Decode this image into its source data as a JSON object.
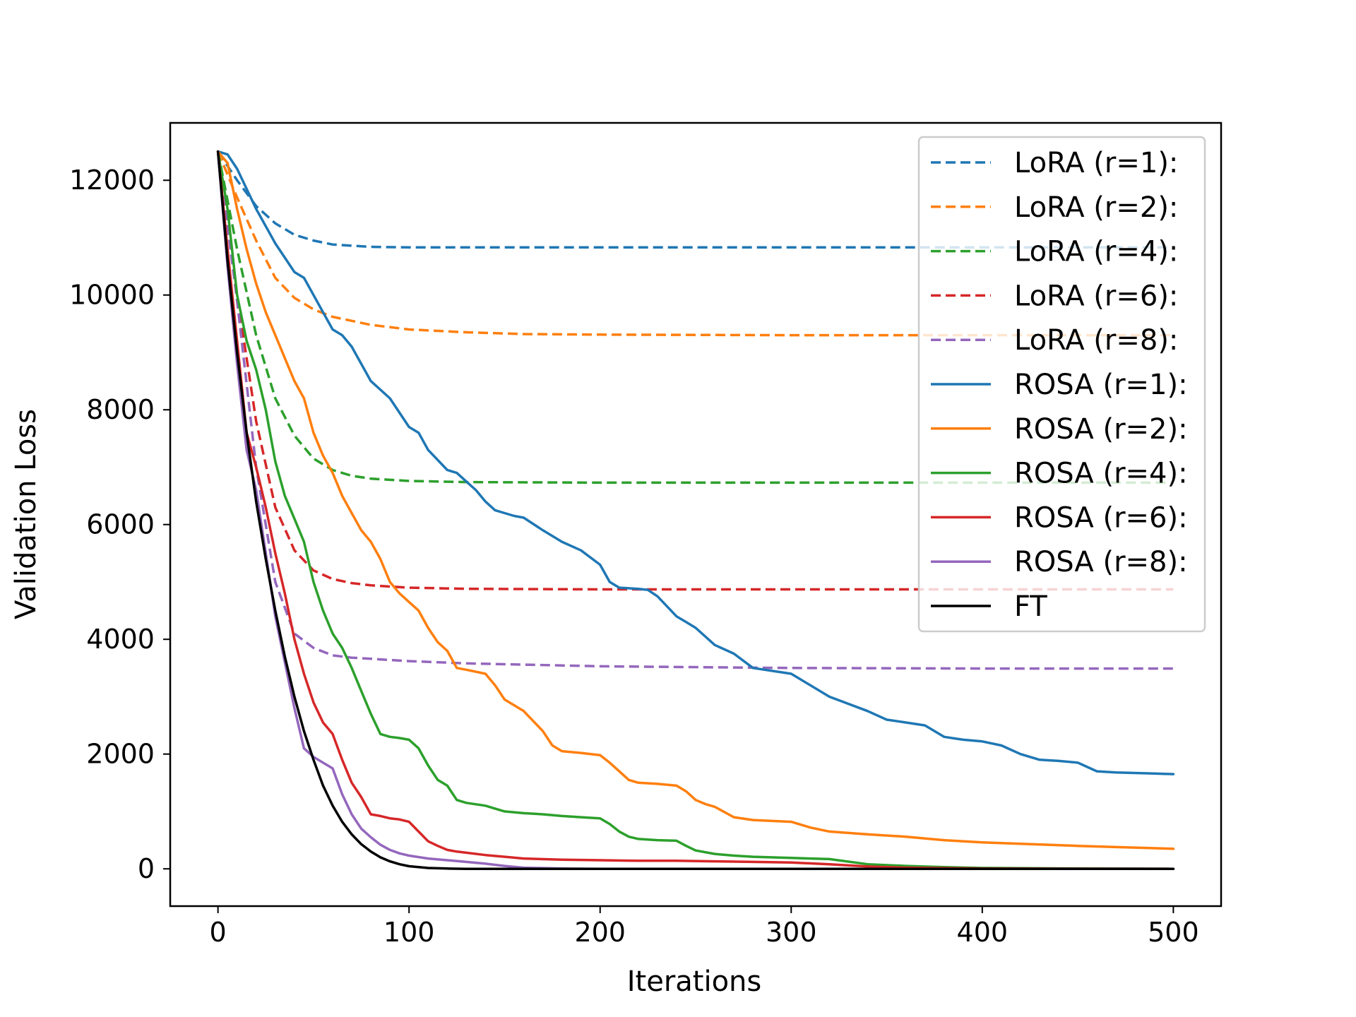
{
  "chart_data": {
    "type": "line",
    "title": "",
    "xlabel": "Iterations",
    "ylabel": "Validation Loss",
    "xlim": [
      -25,
      525
    ],
    "ylim": [
      -650,
      13000
    ],
    "xticks": [
      0,
      100,
      200,
      300,
      400,
      500
    ],
    "yticks": [
      0,
      2000,
      4000,
      6000,
      8000,
      10000,
      12000
    ],
    "grid": false,
    "legend_position": "top-right",
    "series": [
      {
        "name": "LoRA (r=1):",
        "color": "#1f77b4",
        "style": "dashed",
        "x": [
          0,
          10,
          20,
          30,
          40,
          50,
          60,
          80,
          100,
          150,
          200,
          300,
          400,
          500
        ],
        "y": [
          12500,
          12000,
          11550,
          11250,
          11050,
          10950,
          10880,
          10840,
          10830,
          10830,
          10830,
          10830,
          10830,
          10830
        ]
      },
      {
        "name": "LoRA (r=2):",
        "color": "#ff7f0e",
        "style": "dashed",
        "x": [
          0,
          10,
          20,
          30,
          40,
          50,
          60,
          80,
          100,
          130,
          160,
          200,
          300,
          400,
          500
        ],
        "y": [
          12500,
          11700,
          10950,
          10300,
          9950,
          9750,
          9620,
          9480,
          9400,
          9350,
          9320,
          9310,
          9300,
          9300,
          9300
        ]
      },
      {
        "name": "LoRA (r=4):",
        "color": "#2ca02c",
        "style": "dashed",
        "x": [
          0,
          10,
          20,
          30,
          40,
          50,
          60,
          70,
          80,
          100,
          130,
          200,
          300,
          400,
          500
        ],
        "y": [
          12500,
          10800,
          9300,
          8200,
          7550,
          7150,
          6950,
          6850,
          6800,
          6760,
          6740,
          6730,
          6730,
          6730,
          6730
        ]
      },
      {
        "name": "LoRA (r=6):",
        "color": "#d62728",
        "style": "dashed",
        "x": [
          0,
          10,
          20,
          30,
          40,
          50,
          60,
          70,
          80,
          100,
          130,
          200,
          300,
          400,
          500
        ],
        "y": [
          12500,
          10000,
          7800,
          6300,
          5550,
          5200,
          5050,
          4980,
          4940,
          4900,
          4880,
          4870,
          4870,
          4870,
          4870
        ]
      },
      {
        "name": "LoRA (r=8):",
        "color": "#9467bd",
        "style": "dashed",
        "x": [
          0,
          10,
          20,
          30,
          40,
          50,
          60,
          70,
          80,
          100,
          130,
          200,
          300,
          400,
          500
        ],
        "y": [
          12500,
          9900,
          7000,
          5000,
          4100,
          3850,
          3720,
          3680,
          3660,
          3620,
          3580,
          3530,
          3500,
          3490,
          3490
        ]
      },
      {
        "name": "ROSA (r=1):",
        "color": "#1f77b4",
        "style": "solid",
        "x": [
          0,
          5,
          10,
          20,
          30,
          40,
          45,
          50,
          55,
          60,
          65,
          70,
          80,
          90,
          100,
          105,
          110,
          120,
          125,
          130,
          135,
          140,
          145,
          150,
          155,
          160,
          170,
          180,
          190,
          200,
          205,
          210,
          220,
          225,
          230,
          240,
          245,
          250,
          260,
          270,
          280,
          300,
          320,
          340,
          350,
          360,
          370,
          380,
          390,
          400,
          410,
          420,
          430,
          440,
          450,
          460,
          470,
          480,
          490,
          500
        ],
        "y": [
          12500,
          12450,
          12200,
          11500,
          10900,
          10400,
          10300,
          10000,
          9700,
          9400,
          9300,
          9100,
          8500,
          8200,
          7700,
          7600,
          7300,
          6950,
          6900,
          6750,
          6600,
          6400,
          6250,
          6200,
          6150,
          6120,
          5900,
          5700,
          5550,
          5300,
          5000,
          4900,
          4880,
          4860,
          4750,
          4400,
          4300,
          4200,
          3900,
          3750,
          3500,
          3400,
          3000,
          2750,
          2600,
          2550,
          2500,
          2300,
          2250,
          2220,
          2150,
          2000,
          1900,
          1880,
          1850,
          1700,
          1680,
          1670,
          1660,
          1650
        ]
      },
      {
        "name": "ROSA (r=2):",
        "color": "#ff7f0e",
        "style": "solid",
        "x": [
          0,
          5,
          10,
          15,
          20,
          25,
          30,
          35,
          40,
          45,
          50,
          55,
          60,
          65,
          70,
          75,
          80,
          85,
          90,
          95,
          100,
          105,
          110,
          115,
          120,
          125,
          130,
          140,
          145,
          150,
          160,
          170,
          175,
          180,
          190,
          200,
          205,
          210,
          215,
          220,
          230,
          240,
          245,
          250,
          255,
          260,
          270,
          280,
          300,
          310,
          320,
          340,
          360,
          380,
          400,
          450,
          500
        ],
        "y": [
          12500,
          12300,
          11500,
          10800,
          10200,
          9700,
          9300,
          8900,
          8500,
          8200,
          7600,
          7200,
          6900,
          6500,
          6200,
          5900,
          5700,
          5400,
          5000,
          4800,
          4650,
          4500,
          4200,
          3950,
          3800,
          3500,
          3470,
          3400,
          3200,
          2950,
          2750,
          2400,
          2150,
          2050,
          2020,
          1980,
          1850,
          1700,
          1550,
          1500,
          1480,
          1450,
          1350,
          1200,
          1130,
          1080,
          900,
          850,
          820,
          720,
          650,
          600,
          560,
          500,
          460,
          400,
          350
        ]
      },
      {
        "name": "ROSA (r=4):",
        "color": "#2ca02c",
        "style": "solid",
        "x": [
          0,
          5,
          10,
          15,
          20,
          25,
          30,
          35,
          40,
          45,
          50,
          55,
          60,
          65,
          70,
          75,
          80,
          85,
          90,
          95,
          100,
          105,
          110,
          115,
          120,
          125,
          130,
          140,
          145,
          150,
          160,
          170,
          180,
          190,
          200,
          205,
          210,
          215,
          220,
          230,
          240,
          245,
          250,
          260,
          270,
          280,
          300,
          320,
          340,
          360,
          380,
          400,
          450,
          500
        ],
        "y": [
          12500,
          11500,
          10000,
          9200,
          8700,
          8000,
          7100,
          6500,
          6100,
          5700,
          5000,
          4500,
          4100,
          3850,
          3500,
          3100,
          2700,
          2350,
          2300,
          2280,
          2250,
          2100,
          1800,
          1550,
          1450,
          1200,
          1150,
          1100,
          1050,
          1000,
          970,
          950,
          920,
          900,
          880,
          780,
          650,
          560,
          520,
          500,
          490,
          400,
          320,
          260,
          230,
          210,
          190,
          170,
          80,
          50,
          30,
          15,
          5,
          0
        ]
      },
      {
        "name": "ROSA (r=6):",
        "color": "#d62728",
        "style": "solid",
        "x": [
          0,
          5,
          10,
          15,
          20,
          25,
          30,
          35,
          40,
          45,
          50,
          55,
          60,
          65,
          70,
          75,
          80,
          85,
          90,
          95,
          100,
          105,
          110,
          115,
          120,
          125,
          130,
          140,
          150,
          160,
          180,
          200,
          220,
          240,
          260,
          280,
          300,
          320,
          340,
          360,
          400,
          500
        ],
        "y": [
          12500,
          10800,
          9200,
          7600,
          7000,
          6300,
          5500,
          4800,
          4000,
          3400,
          2900,
          2550,
          2350,
          1900,
          1500,
          1250,
          950,
          920,
          880,
          860,
          820,
          650,
          480,
          400,
          330,
          300,
          280,
          240,
          210,
          180,
          160,
          150,
          140,
          140,
          130,
          120,
          110,
          80,
          40,
          20,
          5,
          0
        ]
      },
      {
        "name": "ROSA (r=8):",
        "color": "#9467bd",
        "style": "solid",
        "x": [
          0,
          5,
          10,
          15,
          20,
          25,
          30,
          35,
          40,
          45,
          50,
          55,
          60,
          65,
          70,
          75,
          80,
          85,
          90,
          95,
          100,
          110,
          120,
          130,
          140,
          150,
          160,
          180,
          200,
          300,
          500
        ],
        "y": [
          12500,
          10500,
          8800,
          7300,
          6600,
          5500,
          4400,
          3600,
          2800,
          2100,
          1950,
          1850,
          1750,
          1300,
          950,
          700,
          550,
          420,
          330,
          270,
          230,
          180,
          150,
          120,
          90,
          50,
          20,
          5,
          0,
          0,
          0
        ]
      },
      {
        "name": "FT",
        "color": "#000000",
        "style": "solid",
        "x": [
          0,
          5,
          10,
          15,
          20,
          25,
          30,
          35,
          40,
          45,
          50,
          55,
          60,
          65,
          70,
          75,
          80,
          85,
          90,
          95,
          100,
          110,
          120,
          130,
          150,
          200,
          300,
          400,
          500
        ],
        "y": [
          12500,
          10600,
          9000,
          7600,
          6400,
          5400,
          4500,
          3700,
          3000,
          2400,
          1900,
          1450,
          1100,
          820,
          600,
          430,
          300,
          200,
          130,
          80,
          45,
          15,
          5,
          0,
          0,
          0,
          0,
          0,
          0
        ]
      }
    ]
  }
}
